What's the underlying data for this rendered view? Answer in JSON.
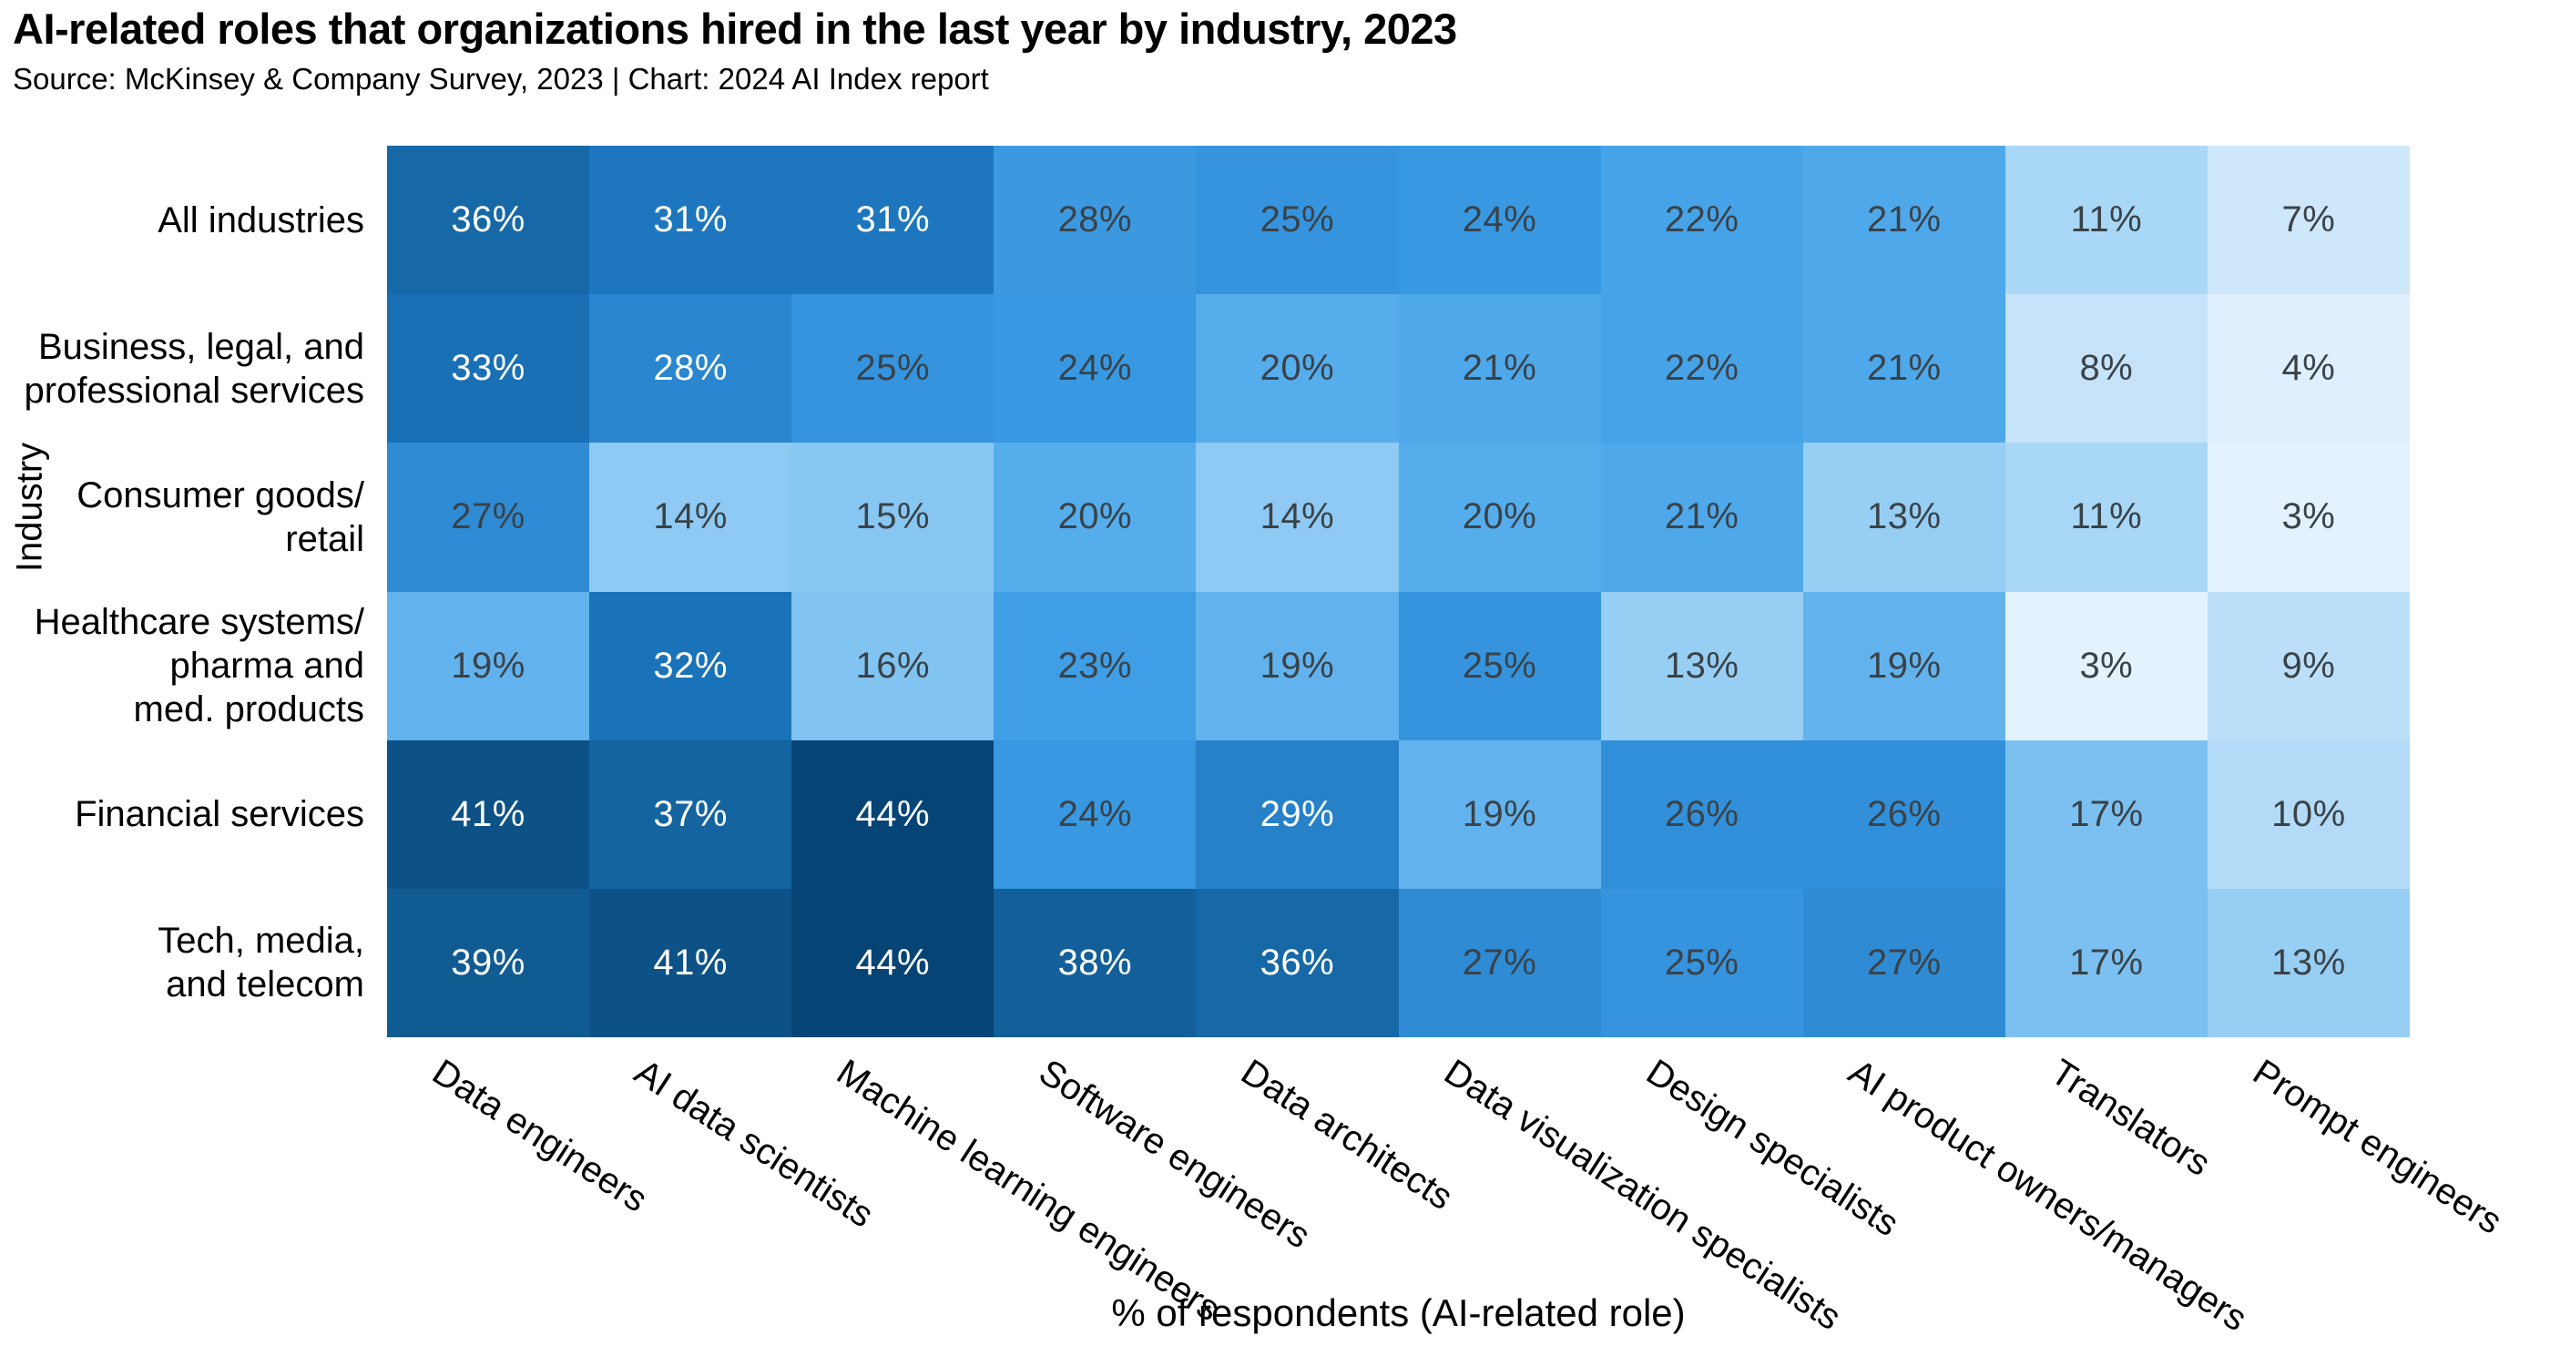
{
  "header": {
    "title": "AI-related roles that organizations hired in the last year by industry, 2023",
    "subtitle": "Source: McKinsey & Company Survey, 2023 | Chart: 2024 AI Index report"
  },
  "chart_data": {
    "type": "heatmap",
    "title": "AI-related roles that organizations hired in the last year by industry, 2023",
    "xlabel": "% of respondents (AI-related role)",
    "ylabel": "Industry",
    "unit": "%",
    "columns": [
      "Data engineers",
      "AI data scientists",
      "Machine learning engineers",
      "Software engineers",
      "Data architects",
      "Data visualization specialists",
      "Design specialists",
      "AI product owners/managers",
      "Translators",
      "Prompt engineers"
    ],
    "rows": [
      "All industries",
      "Business, legal, and professional services",
      "Consumer goods/retail",
      "Healthcare systems/pharma and med. products",
      "Financial services",
      "Tech, media, and telecom"
    ],
    "row_label_lines": [
      [
        "All industries"
      ],
      [
        "Business, legal, and",
        "professional services"
      ],
      [
        "Consumer goods/",
        "retail"
      ],
      [
        "Healthcare systems/",
        "pharma and",
        "med. products"
      ],
      [
        "Financial services"
      ],
      [
        "Tech, media,",
        "and telecom"
      ]
    ],
    "values": [
      [
        36,
        31,
        31,
        28,
        25,
        24,
        22,
        21,
        11,
        7
      ],
      [
        33,
        28,
        25,
        24,
        20,
        21,
        22,
        21,
        8,
        4
      ],
      [
        27,
        14,
        15,
        20,
        14,
        20,
        21,
        13,
        11,
        3
      ],
      [
        19,
        32,
        16,
        23,
        19,
        25,
        13,
        19,
        3,
        9
      ],
      [
        41,
        37,
        44,
        24,
        29,
        19,
        26,
        26,
        17,
        10
      ],
      [
        39,
        41,
        44,
        38,
        36,
        27,
        25,
        27,
        17,
        13
      ]
    ],
    "value_range": [
      3,
      44
    ],
    "grid": "off",
    "legend": "none",
    "color_scale": {
      "stops": [
        [
          3,
          "#e4f2fd"
        ],
        [
          7,
          "#cfe7fb"
        ],
        [
          11,
          "#a9d7f6"
        ],
        [
          14,
          "#8ecaf3"
        ],
        [
          17,
          "#7bc0f0"
        ],
        [
          20,
          "#55adec"
        ],
        [
          24,
          "#3899e2"
        ],
        [
          28,
          "#2a86cf"
        ],
        [
          32,
          "#1a72b8"
        ],
        [
          36,
          "#1668a6"
        ],
        [
          41,
          "#0d5287"
        ],
        [
          44,
          "#064476"
        ]
      ]
    },
    "text_colors": {
      "dark": "#3a4248",
      "light": "#ffffff",
      "white_text_min": 28,
      "dark_text_exceptions": [
        [
          0,
          3
        ]
      ]
    },
    "cell_color_overrides": [
      {
        "row": 0,
        "col": 3,
        "color": "#3c99e0"
      }
    ]
  }
}
